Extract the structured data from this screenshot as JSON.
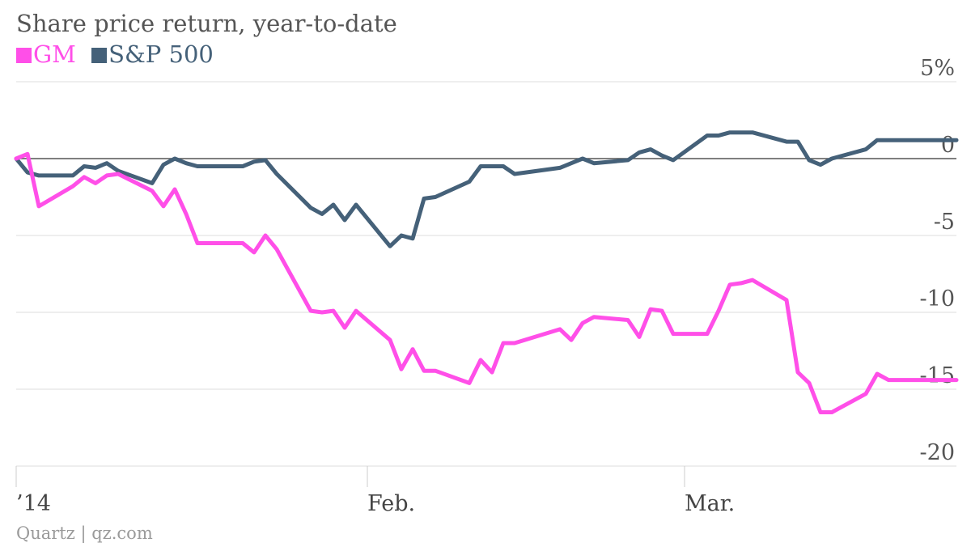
{
  "title": "Share price return, year-to-date",
  "credit": "Quartz | qz.com",
  "colors": {
    "GM": "#ff4fe8",
    "S&P 500": "#456179",
    "grid": "#dddddd",
    "zero": "#555555"
  },
  "chart_data": {
    "type": "line",
    "title": "Share price return, year-to-date",
    "xlabel": "",
    "ylabel": "",
    "ylim": [
      -20,
      5
    ],
    "grid": true,
    "legend": "top-left",
    "y_ticks": [
      {
        "value": 5,
        "label": "5%"
      },
      {
        "value": 0,
        "label": "0"
      },
      {
        "value": -5,
        "label": "-5"
      },
      {
        "value": -10,
        "label": "-10"
      },
      {
        "value": -15,
        "label": "-15"
      },
      {
        "value": -20,
        "label": "-20"
      }
    ],
    "x_ticks": [
      {
        "date": "2014-01-01",
        "label": "’14"
      },
      {
        "date": "2014-02-01",
        "label": "Feb."
      },
      {
        "date": "2014-03-01",
        "label": "Mar."
      }
    ],
    "x_range": [
      "2014-01-01",
      "2014-03-25"
    ],
    "dates": [
      "2014-01-01",
      "2014-01-02",
      "2014-01-03",
      "2014-01-06",
      "2014-01-07",
      "2014-01-08",
      "2014-01-09",
      "2014-01-10",
      "2014-01-13",
      "2014-01-14",
      "2014-01-15",
      "2014-01-16",
      "2014-01-17",
      "2014-01-21",
      "2014-01-22",
      "2014-01-23",
      "2014-01-24",
      "2014-01-27",
      "2014-01-28",
      "2014-01-29",
      "2014-01-30",
      "2014-01-31",
      "2014-02-03",
      "2014-02-04",
      "2014-02-05",
      "2014-02-06",
      "2014-02-07",
      "2014-02-10",
      "2014-02-11",
      "2014-02-12",
      "2014-02-13",
      "2014-02-14",
      "2014-02-18",
      "2014-02-19",
      "2014-02-20",
      "2014-02-21",
      "2014-02-24",
      "2014-02-25",
      "2014-02-26",
      "2014-02-27",
      "2014-02-28",
      "2014-03-03",
      "2014-03-04",
      "2014-03-05",
      "2014-03-06",
      "2014-03-07",
      "2014-03-10",
      "2014-03-11",
      "2014-03-12",
      "2014-03-13",
      "2014-03-14",
      "2014-03-17",
      "2014-03-18",
      "2014-03-19",
      "2014-03-20",
      "2014-03-21",
      "2014-03-24",
      "2014-03-25"
    ],
    "series": [
      {
        "name": "GM",
        "values": [
          0.0,
          0.3,
          -3.1,
          -1.8,
          -1.2,
          -1.6,
          -1.1,
          -1.0,
          -2.1,
          -3.1,
          -2.0,
          -3.6,
          -5.5,
          -5.5,
          -6.1,
          -5.0,
          -5.9,
          -9.9,
          -10.0,
          -9.9,
          -11.0,
          -9.9,
          -11.8,
          -13.7,
          -12.4,
          -13.8,
          -13.8,
          -14.6,
          -13.1,
          -13.9,
          -12.0,
          -12.0,
          -11.1,
          -11.8,
          -10.7,
          -10.3,
          -10.5,
          -11.6,
          -9.8,
          -9.9,
          -11.4,
          -11.4,
          -9.9,
          -8.2,
          -8.1,
          -7.9,
          -9.2,
          -13.9,
          -14.6,
          -16.5,
          -16.5,
          -15.3,
          -14.0,
          -14.4,
          -14.4,
          -14.4,
          -14.4,
          -14.4
        ]
      },
      {
        "name": "S&P 500",
        "values": [
          0.0,
          -0.9,
          -1.1,
          -1.1,
          -0.5,
          -0.6,
          -0.3,
          -0.8,
          -1.6,
          -0.4,
          0.0,
          -0.3,
          -0.5,
          -0.5,
          -0.2,
          -0.1,
          -1.0,
          -3.2,
          -3.6,
          -3.0,
          -4.0,
          -3.0,
          -5.7,
          -5.0,
          -5.2,
          -2.6,
          -2.5,
          -1.5,
          -0.5,
          -0.5,
          -0.5,
          -1.0,
          -0.6,
          -0.3,
          0.0,
          -0.3,
          -0.1,
          0.4,
          0.6,
          0.2,
          -0.1,
          1.5,
          1.5,
          1.7,
          1.7,
          1.7,
          1.1,
          1.1,
          -0.1,
          -0.4,
          0.0,
          0.6,
          1.2,
          1.2,
          1.2,
          1.2,
          1.2,
          1.2
        ]
      }
    ]
  }
}
